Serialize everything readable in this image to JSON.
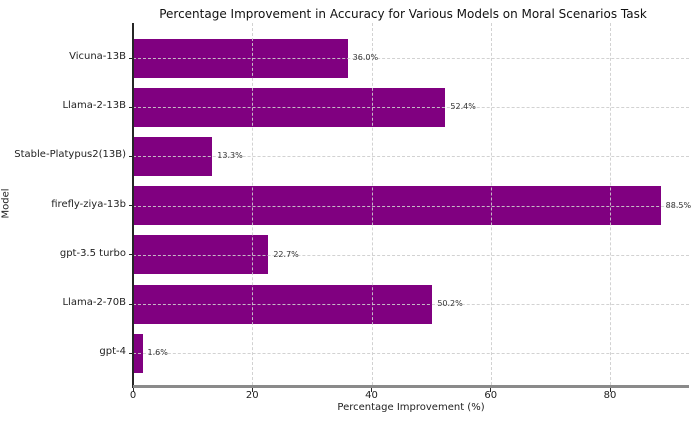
{
  "chart_data": {
    "type": "bar",
    "orientation": "horizontal",
    "title": "Percentage Improvement in Accuracy for Various Models on Moral Scenarios Task",
    "xlabel": "Percentage Improvement (%)",
    "ylabel": "Model",
    "categories": [
      "Vicuna-13B",
      "Llama-2-13B",
      "Stable-Platypus2(13B)",
      "firefly-ziya-13b",
      "gpt-3.5 turbo",
      "Llama-2-70B",
      "gpt-4"
    ],
    "values": [
      36.0,
      52.4,
      13.3,
      88.5,
      22.7,
      50.2,
      1.6
    ],
    "value_labels": [
      "36.0%",
      "52.4%",
      "13.3%",
      "88.5%",
      "22.7%",
      "50.2%",
      "1.6%"
    ],
    "xticks": [
      0,
      20,
      40,
      60,
      80
    ],
    "xtick_labels": [
      "0",
      "20",
      "40",
      "60",
      "80"
    ],
    "xlim": [
      0,
      93.3
    ],
    "bar_color": "#800080",
    "grid": "dashed",
    "gridline_color": "#cccccc",
    "legend": "none"
  }
}
